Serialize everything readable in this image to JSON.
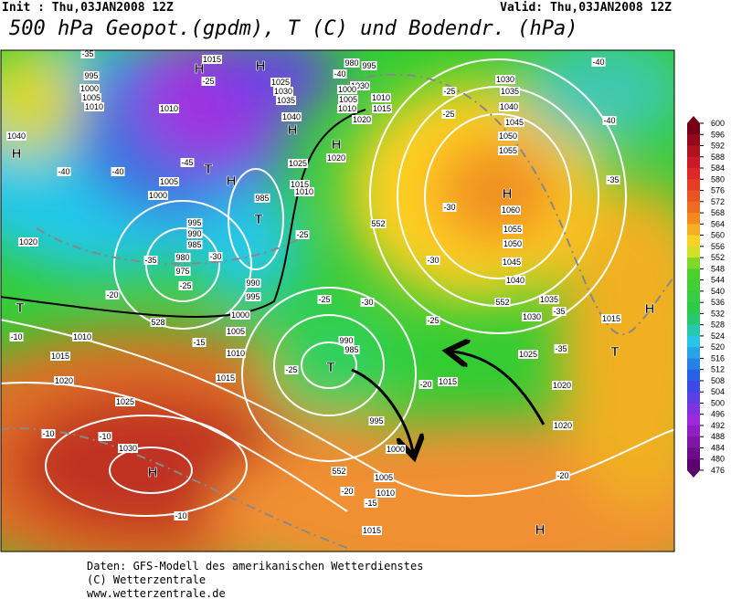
{
  "header": {
    "init": "Init : Thu,03JAN2008 12Z",
    "valid": "Valid: Thu,03JAN2008 12Z",
    "title": "500 hPa Geopot.(gpdm), T (C) und Bodendr. (hPa)"
  },
  "colorbar": {
    "ticks": [
      600,
      596,
      592,
      588,
      584,
      580,
      576,
      572,
      568,
      564,
      560,
      556,
      552,
      548,
      544,
      540,
      536,
      532,
      528,
      524,
      520,
      516,
      512,
      508,
      504,
      500,
      496,
      492,
      488,
      484,
      480,
      476
    ]
  },
  "map": {
    "labels": [
      "H",
      "H",
      "H",
      "H",
      "H",
      "H",
      "T",
      "T",
      "H",
      "T",
      "H",
      "H",
      "H",
      "T",
      "T",
      "1015",
      "980",
      "1000",
      "1005",
      "1010",
      "1010",
      "1040",
      "1020",
      "1005",
      "1000",
      "995",
      "990",
      "985",
      "980",
      "975",
      "985",
      "990",
      "995",
      "1000",
      "1005",
      "1010",
      "1015",
      "1010",
      "1015",
      "1020",
      "1025",
      "1030",
      "1025",
      "1020",
      "1015",
      "1010",
      "1030",
      "1035",
      "1040",
      "1045",
      "1050",
      "1055",
      "1060",
      "1055",
      "1050",
      "1045",
      "1040",
      "1035",
      "1030",
      "1025",
      "1020",
      "1015",
      "990",
      "985",
      "995",
      "1000",
      "1005",
      "1010",
      "1015",
      "1015",
      "1020",
      "1030",
      "1010",
      "1015",
      "1020",
      "1025",
      "1030",
      "1035",
      "1040",
      "995",
      "990",
      "995",
      "1000",
      "1005",
      "1010",
      "-35",
      "-40",
      "-40",
      "-45",
      "-25",
      "-30",
      "-35",
      "-25",
      "-20",
      "-15",
      "-10",
      "-10",
      "-10",
      "-10",
      "-20",
      "-15",
      "-25",
      "-25",
      "-30",
      "-25",
      "-20",
      "-25",
      "-30",
      "-30",
      "-35",
      "-35",
      "-20",
      "-40",
      "-40",
      "-35",
      "-25",
      "-25",
      "-40",
      "552",
      "552",
      "528",
      "552"
    ]
  },
  "footer": {
    "lines": [
      "Daten: GFS-Modell des amerikanischen Wetterdienstes",
      "(C) Wetterzentrale",
      "www.wetterzentrale.de"
    ]
  }
}
